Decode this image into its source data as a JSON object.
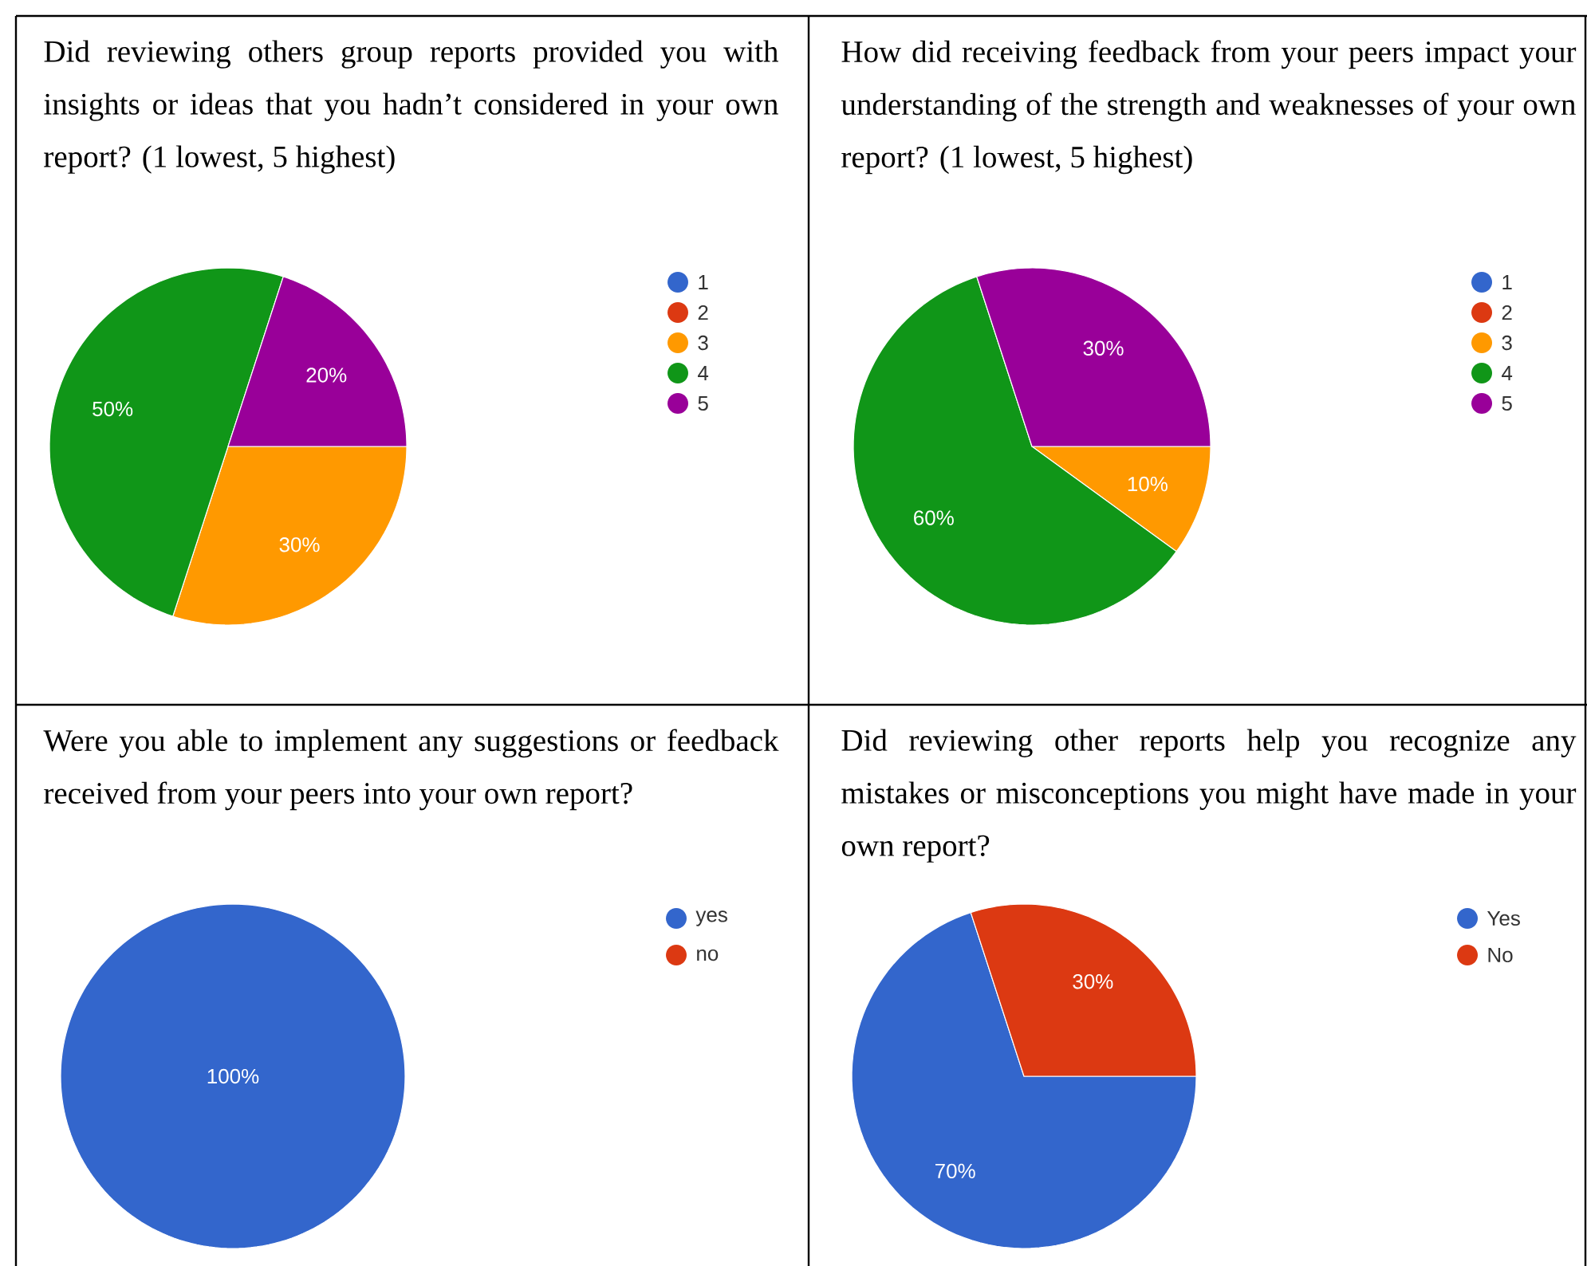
{
  "chart_data": [
    {
      "type": "pie",
      "title": "Did reviewing others group reports provided you with insights or ideas that you hadn’t considered in your own report? (1 lowest, 5 highest)",
      "categories": [
        "1",
        "2",
        "3",
        "4",
        "5"
      ],
      "values": [
        0,
        0,
        30,
        50,
        20
      ],
      "colors": [
        "#3366cc",
        "#dc3912",
        "#ff9900",
        "#109618",
        "#990099"
      ],
      "value_labels": [
        null,
        null,
        "30%",
        "50%",
        "20%"
      ],
      "legend": "right"
    },
    {
      "type": "pie",
      "title": "How did receiving feedback from your peers impact your understanding of the strength and weaknesses of your own report? (1 lowest, 5 highest)",
      "categories": [
        "1",
        "2",
        "3",
        "4",
        "5"
      ],
      "values": [
        0,
        0,
        10,
        60,
        30
      ],
      "colors": [
        "#3366cc",
        "#dc3912",
        "#ff9900",
        "#109618",
        "#990099"
      ],
      "value_labels": [
        null,
        null,
        "10%",
        "60%",
        "30%"
      ],
      "legend": "right"
    },
    {
      "type": "pie",
      "title": "Were you able to implement any suggestions or feedback received from your peers into your own report?",
      "categories": [
        "yes",
        "no"
      ],
      "values": [
        100,
        0
      ],
      "colors": [
        "#3366cc",
        "#dc3912"
      ],
      "value_labels": [
        "100%",
        null
      ],
      "legend": "right"
    },
    {
      "type": "pie",
      "title": "Did reviewing other reports help you recognize any mistakes or misconceptions you might have made in your own report?",
      "categories": [
        "Yes",
        "No"
      ],
      "values": [
        70,
        30
      ],
      "colors": [
        "#3366cc",
        "#dc3912"
      ],
      "value_labels": [
        "70%",
        "30%"
      ],
      "legend": "right"
    }
  ]
}
